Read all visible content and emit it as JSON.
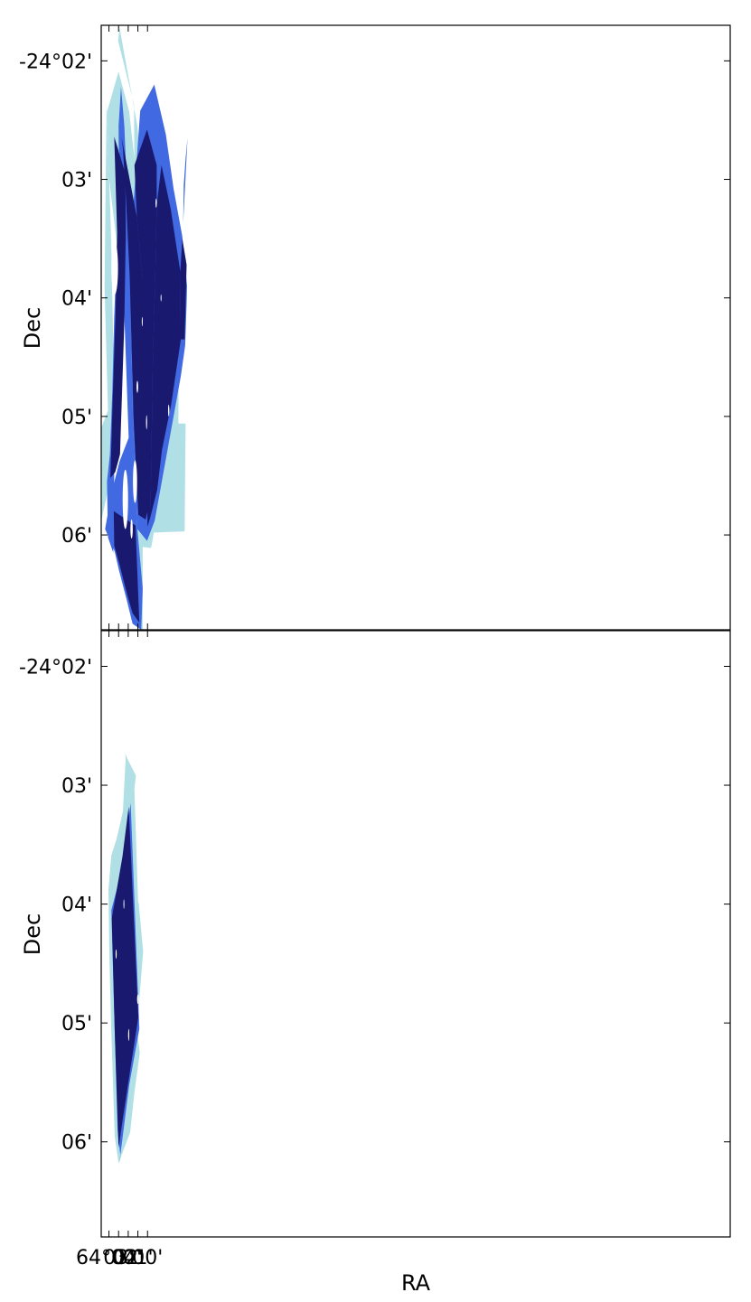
{
  "chart_data": [
    {
      "type": "footprint-map",
      "panel": "top",
      "xlabel": "",
      "ylabel": "Dec",
      "ra_range_min": [
        64.8,
        -0.4
      ],
      "dec_range_arcmin": [
        1.7,
        6.8
      ],
      "yticks": [
        {
          "dec": 2,
          "label": "-24°02'"
        },
        {
          "dec": 3,
          "label": "03'"
        },
        {
          "dec": 4,
          "label": "04'"
        },
        {
          "dec": 5,
          "label": "05'"
        },
        {
          "dec": 6,
          "label": "06'"
        }
      ],
      "layers": [
        {
          "color": "#b0e0e6",
          "polygons": [
            [
              [
                62.9,
                1.72
              ],
              [
                61.05,
                2.55
              ],
              [
                60.6,
                3.0
              ],
              [
                59.35,
                2.97
              ],
              [
                59.4,
                3.23
              ],
              [
                58.2,
                3.63
              ],
              [
                56.75,
                3.66
              ],
              [
                56.8,
                5.06
              ],
              [
                56.05,
                5.06
              ],
              [
                56.15,
                5.97
              ],
              [
                59.35,
                5.98
              ],
              [
                59.55,
                6.08
              ],
              [
                59.65,
                6.11
              ],
              [
                62.4,
                6.08
              ],
              [
                62.4,
                5.95
              ],
              [
                61.0,
                5.86
              ],
              [
                61.3,
                4.68
              ],
              [
                61.6,
                3.53
              ],
              [
                61.35,
                3.02
              ],
              [
                61.4,
                2.37
              ],
              [
                63.05,
                1.83
              ]
            ],
            [
              [
                61.9,
                2.43
              ],
              [
                60.4,
                3.53
              ],
              [
                59.9,
                4.55
              ],
              [
                59.6,
                5.38
              ],
              [
                60.1,
                6.03
              ],
              [
                60.7,
                6.1
              ],
              [
                61.6,
                5.78
              ],
              [
                61.9,
                4.42
              ],
              [
                64.0,
                2.98
              ],
              [
                64.2,
                2.43
              ],
              [
                63.0,
                2.09
              ]
            ],
            [
              [
                64.25,
                2.35
              ],
              [
                64.45,
                3.92
              ],
              [
                64.1,
                4.95
              ],
              [
                65.0,
                5.14
              ],
              [
                65.05,
                5.98
              ],
              [
                63.9,
                5.55
              ],
              [
                63.5,
                4.6
              ],
              [
                63.8,
                3.42
              ]
            ],
            [
              [
                60.5,
                5.82
              ],
              [
                60.5,
                6.85
              ],
              [
                60.85,
                6.9
              ],
              [
                61.15,
                6.12
              ]
            ]
          ]
        },
        {
          "color": "#4169e1",
          "polygons": [
            [
              [
                63.0,
                2.55
              ],
              [
                62.65,
                3.6
              ],
              [
                62.35,
                4.28
              ],
              [
                61.95,
                5.18
              ],
              [
                62.9,
                5.38
              ],
              [
                63.75,
                5.65
              ],
              [
                64.4,
                5.95
              ],
              [
                63.4,
                6.14
              ],
              [
                62.95,
                6.3
              ],
              [
                62.15,
                6.55
              ],
              [
                61.55,
                6.75
              ],
              [
                60.65,
                6.8
              ],
              [
                60.5,
                6.45
              ],
              [
                61.05,
                5.95
              ],
              [
                61.5,
                5.05
              ],
              [
                61.8,
                3.85
              ],
              [
                62.1,
                3.15
              ],
              [
                62.4,
                2.55
              ],
              [
                62.75,
                2.22
              ]
            ],
            [
              [
                63.0,
                2.55
              ],
              [
                62.95,
                3.0
              ],
              [
                63.15,
                3.52
              ],
              [
                63.45,
                4.15
              ],
              [
                63.65,
                4.78
              ],
              [
                63.9,
                5.32
              ],
              [
                64.2,
                5.55
              ],
              [
                64.1,
                6.02
              ],
              [
                63.55,
                6.15
              ]
            ],
            [
              [
                61.9,
                3.7
              ],
              [
                60.75,
                2.42
              ],
              [
                59.3,
                2.2
              ],
              [
                58.1,
                2.62
              ],
              [
                57.3,
                3.08
              ],
              [
                56.4,
                3.48
              ],
              [
                55.9,
                3.9
              ],
              [
                55.95,
                4.05
              ],
              [
                56.1,
                4.4
              ],
              [
                56.55,
                4.66
              ],
              [
                58.3,
                5.45
              ],
              [
                59.25,
                5.88
              ],
              [
                60.05,
                6.05
              ],
              [
                61.05,
                5.95
              ],
              [
                61.5,
                5.05
              ],
              [
                61.8,
                3.85
              ]
            ],
            [
              [
                55.85,
                2.65
              ],
              [
                56.05,
                2.82
              ],
              [
                56.25,
                3.05
              ],
              [
                56.3,
                3.37
              ]
            ]
          ]
        },
        {
          "color": "#191970",
          "polygons": [
            [
              [
                62.7,
                2.64
              ],
              [
                61.1,
                3.32
              ],
              [
                60.55,
                3.82
              ],
              [
                60.05,
                4.47
              ],
              [
                59.75,
                5.18
              ],
              [
                59.75,
                5.72
              ],
              [
                60.2,
                5.87
              ],
              [
                60.95,
                5.83
              ],
              [
                61.45,
                5.02
              ],
              [
                61.85,
                3.82
              ],
              [
                62.25,
                3.13
              ],
              [
                62.55,
                2.74
              ]
            ],
            [
              [
                63.45,
                2.64
              ],
              [
                62.3,
                2.95
              ],
              [
                62.25,
                3.45
              ],
              [
                62.4,
                4.2
              ],
              [
                62.85,
                5.32
              ],
              [
                63.35,
                5.47
              ],
              [
                63.85,
                5.52
              ],
              [
                63.55,
                4.72
              ],
              [
                63.3,
                4.1
              ],
              [
                63.15,
                3.45
              ]
            ],
            [
              [
                63.5,
                5.8
              ],
              [
                63.45,
                6.09
              ],
              [
                62.9,
                6.25
              ],
              [
                62.5,
                6.38
              ],
              [
                62.05,
                6.52
              ],
              [
                61.55,
                6.66
              ],
              [
                60.85,
                6.74
              ],
              [
                61.25,
                5.92
              ]
            ],
            [
              [
                58.55,
                2.88
              ],
              [
                57.6,
                3.25
              ],
              [
                56.6,
                3.78
              ],
              [
                56.55,
                4.35
              ],
              [
                57.55,
                4.9
              ],
              [
                58.5,
                5.28
              ],
              [
                59.0,
                5.62
              ],
              [
                59.7,
                5.85
              ],
              [
                59.6,
                5.33
              ],
              [
                59.45,
                4.55
              ],
              [
                59.2,
                3.82
              ],
              [
                59.05,
                3.22
              ]
            ],
            [
              [
                60.05,
                2.58
              ],
              [
                59.05,
                2.88
              ],
              [
                59.05,
                3.22
              ],
              [
                59.2,
                3.82
              ],
              [
                59.45,
                4.55
              ],
              [
                59.6,
                5.33
              ],
              [
                59.7,
                5.85
              ],
              [
                60.0,
                5.93
              ],
              [
                60.05,
                5.5
              ],
              [
                60.25,
                4.6
              ],
              [
                60.55,
                3.82
              ],
              [
                61.1,
                3.32
              ],
              [
                61.35,
                2.88
              ]
            ],
            [
              [
                56.4,
                3.5
              ],
              [
                55.95,
                3.72
              ],
              [
                56.15,
                4.35
              ],
              [
                56.55,
                4.35
              ],
              [
                56.6,
                3.78
              ]
            ]
          ]
        }
      ],
      "holes": [
        {
          "x": 63.4,
          "y": 3.75,
          "rx": 0.35,
          "ry": 0.22
        },
        {
          "x": 62.3,
          "y": 5.7,
          "rx": 0.28,
          "ry": 0.25
        },
        {
          "x": 61.3,
          "y": 5.55,
          "rx": 0.22,
          "ry": 0.18
        },
        {
          "x": 61.65,
          "y": 5.95,
          "rx": 0.12,
          "ry": 0.08
        },
        {
          "x": 59.1,
          "y": 3.2,
          "rx": 0.07,
          "ry": 0.04
        },
        {
          "x": 58.6,
          "y": 4.0,
          "rx": 0.05,
          "ry": 0.03
        },
        {
          "x": 57.8,
          "y": 4.95,
          "rx": 0.07,
          "ry": 0.05
        },
        {
          "x": 60.1,
          "y": 5.05,
          "rx": 0.06,
          "ry": 0.06
        },
        {
          "x": 61.05,
          "y": 4.75,
          "rx": 0.08,
          "ry": 0.05
        },
        {
          "x": 60.55,
          "y": 4.2,
          "rx": 0.05,
          "ry": 0.04
        }
      ]
    },
    {
      "type": "footprint-map",
      "panel": "bottom",
      "xlabel": "RA",
      "ylabel": "Dec",
      "ra_range_min": [
        64.8,
        -0.4
      ],
      "dec_range_arcmin": [
        1.7,
        6.8
      ],
      "xticks": [
        {
          "ra": 64.0,
          "label": "64°04'"
        },
        {
          "ra": 63.0,
          "label": "03'"
        },
        {
          "ra": 62.0,
          "label": "02'"
        },
        {
          "ra": 61.0,
          "label": "01'"
        },
        {
          "ra": 60.0,
          "label": "00'"
        }
      ],
      "yticks": [
        {
          "dec": 2,
          "label": "-24°02'"
        },
        {
          "dec": 3,
          "label": "03'"
        },
        {
          "dec": 4,
          "label": "04'"
        },
        {
          "dec": 5,
          "label": "05'"
        },
        {
          "dec": 6,
          "label": "06'"
        }
      ],
      "layers": [
        {
          "color": "#b0e0e6",
          "polygons": [
            [
              [
                62.25,
                2.75
              ],
              [
                61.2,
                2.92
              ],
              [
                61.4,
                3.05
              ],
              [
                62.05,
                3.65
              ],
              [
                60.9,
                4.0
              ],
              [
                60.45,
                4.4
              ],
              [
                61.1,
                5.05
              ],
              [
                60.8,
                5.25
              ],
              [
                61.35,
                5.58
              ],
              [
                61.8,
                5.92
              ],
              [
                63.0,
                6.18
              ],
              [
                63.4,
                5.95
              ],
              [
                63.75,
                5.08
              ],
              [
                63.95,
                4.47
              ],
              [
                64.05,
                3.88
              ],
              [
                63.75,
                3.59
              ],
              [
                63.2,
                3.45
              ],
              [
                62.55,
                3.22
              ]
            ],
            [
              [
                62.3,
                2.73
              ],
              [
                61.45,
                2.95
              ],
              [
                61.35,
                3.05
              ],
              [
                60.95,
                4.05
              ],
              [
                61.35,
                4.55
              ]
            ]
          ]
        },
        {
          "color": "#4169e1",
          "polygons": [
            [
              [
                61.75,
                3.15
              ],
              [
                60.85,
                5.05
              ],
              [
                61.9,
                5.52
              ],
              [
                62.95,
                6.2
              ],
              [
                62.8,
                6.12
              ],
              [
                63.1,
                5.9
              ],
              [
                63.45,
                4.92
              ],
              [
                63.75,
                4.05
              ],
              [
                63.1,
                3.85
              ],
              [
                62.45,
                3.55
              ]
            ]
          ]
        },
        {
          "color": "#191970",
          "polygons": [
            [
              [
                61.95,
                3.18
              ],
              [
                60.95,
                4.95
              ],
              [
                61.8,
                5.4
              ],
              [
                62.55,
                5.8
              ],
              [
                63.0,
                6.05
              ],
              [
                63.4,
                5.05
              ],
              [
                63.7,
                4.12
              ],
              [
                62.6,
                3.6
              ]
            ]
          ]
        }
      ],
      "holes": [
        {
          "x": 62.45,
          "y": 4.0,
          "rx": 0.05,
          "ry": 0.04
        },
        {
          "x": 61.0,
          "y": 4.8,
          "rx": 0.08,
          "ry": 0.04
        },
        {
          "x": 61.95,
          "y": 5.1,
          "rx": 0.06,
          "ry": 0.05
        },
        {
          "x": 63.25,
          "y": 4.42,
          "rx": 0.06,
          "ry": 0.04
        }
      ]
    }
  ]
}
